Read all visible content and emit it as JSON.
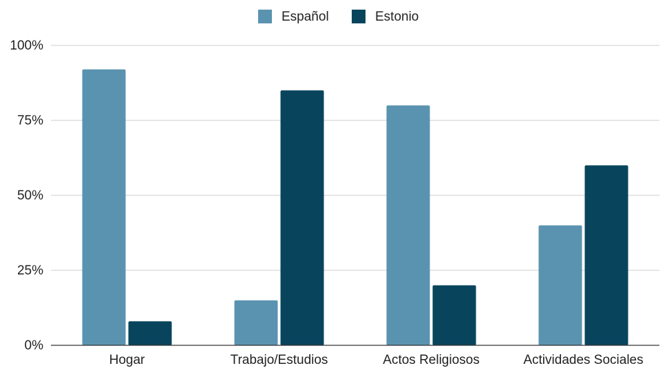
{
  "chart_data": {
    "type": "bar",
    "title": "",
    "xlabel": "",
    "ylabel": "",
    "categories": [
      "Hogar",
      "Trabajo/Estudios",
      "Actos Religiosos",
      "Actividades Sociales"
    ],
    "series": [
      {
        "name": "Español",
        "values": [
          92,
          15,
          80,
          40
        ],
        "color": "#5a93b0"
      },
      {
        "name": "Estonio",
        "values": [
          8,
          85,
          20,
          60
        ],
        "color": "#08455d"
      }
    ],
    "ylim": [
      0,
      100
    ],
    "yticks": [
      0,
      25,
      50,
      75,
      100
    ],
    "ytick_labels": [
      "0%",
      "25%",
      "50%",
      "75%",
      "100%"
    ],
    "grid": true,
    "legend_position": "top-center"
  }
}
